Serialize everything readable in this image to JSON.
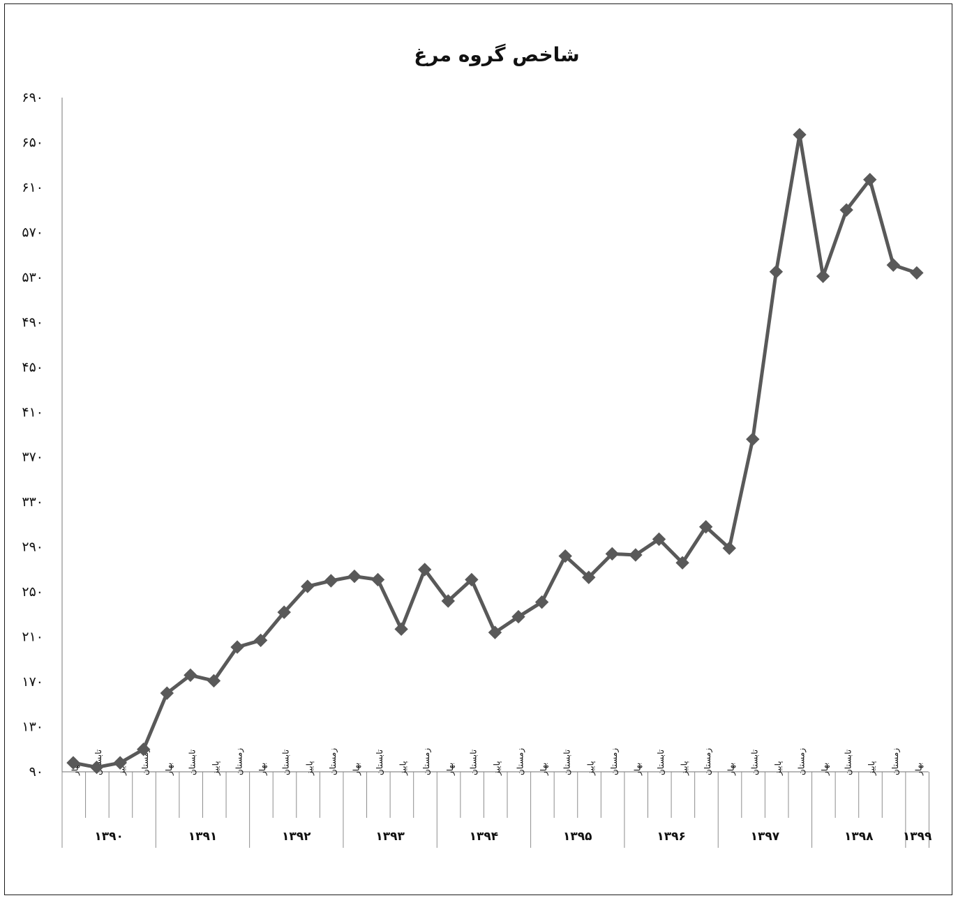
{
  "chart_data": {
    "type": "line",
    "title": "شاخص گروه مرغ",
    "xlabel": "",
    "ylabel": "",
    "ylim": [
      90,
      690
    ],
    "yticks": [
      "۹۰",
      "۱۳۰",
      "۱۷۰",
      "۲۱۰",
      "۲۵۰",
      "۲۹۰",
      "۳۳۰",
      "۳۷۰",
      "۴۱۰",
      "۴۵۰",
      "۴۹۰",
      "۵۳۰",
      "۵۷۰",
      "۶۱۰",
      "۶۵۰",
      "۶۹۰"
    ],
    "ytick_values": [
      90,
      130,
      170,
      210,
      250,
      290,
      330,
      370,
      410,
      450,
      490,
      530,
      570,
      610,
      650,
      690
    ],
    "grid": false,
    "legend": "none",
    "line_color": "#595959",
    "categories": [
      "بهار",
      "تابستان",
      "پاییز",
      "زمستان",
      "بهار",
      "تابستان",
      "پاییز",
      "زمستان",
      "بهار",
      "تابستان",
      "پاییز",
      "زمستان",
      "بهار",
      "تابستان",
      "پاییز",
      "زمستان",
      "بهار",
      "تابستان",
      "پاییز",
      "زمستان",
      "بهار",
      "تابستان",
      "پاییز",
      "زمستان",
      "بهار",
      "تابستان",
      "پاییز",
      "زمستان",
      "بهار",
      "تابستان",
      "پاییز",
      "زمستان",
      "بهار",
      "تابستان",
      "پاییز",
      "زمستان",
      "بهار"
    ],
    "years": [
      {
        "label": "۱۳۹۰",
        "count": 4
      },
      {
        "label": "۱۳۹۱",
        "count": 4
      },
      {
        "label": "۱۳۹۲",
        "count": 4
      },
      {
        "label": "۱۳۹۳",
        "count": 4
      },
      {
        "label": "۱۳۹۴",
        "count": 4
      },
      {
        "label": "۱۳۹۵",
        "count": 4
      },
      {
        "label": "۱۳۹۶",
        "count": 4
      },
      {
        "label": "۱۳۹۷",
        "count": 4
      },
      {
        "label": "۱۳۹۸",
        "count": 4
      },
      {
        "label": "۱۳۹۹",
        "count": 1
      }
    ],
    "series": [
      {
        "values": [
          98,
          94,
          98,
          110,
          160,
          176,
          171,
          201,
          207,
          232,
          255,
          260,
          264,
          261,
          217,
          270,
          242,
          261,
          214,
          228,
          241,
          282,
          263,
          284,
          283,
          297,
          276,
          308,
          289,
          386,
          535,
          657,
          531,
          590,
          617,
          541,
          534
        ]
      }
    ]
  }
}
